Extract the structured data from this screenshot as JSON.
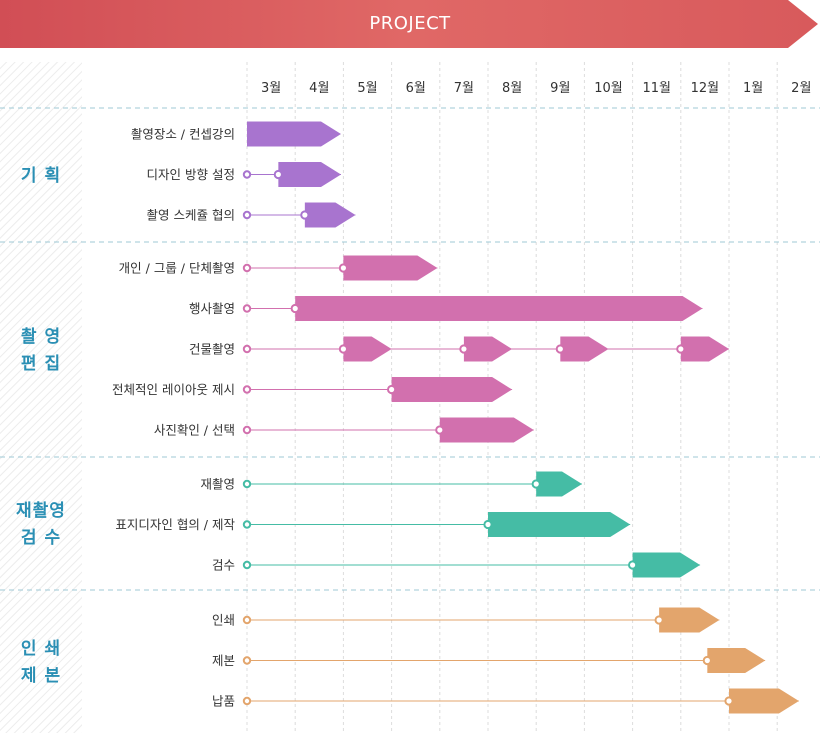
{
  "header": {
    "title": "PROJECT",
    "color": "#d9585b"
  },
  "months": [
    "3월",
    "4월",
    "5월",
    "6월",
    "7월",
    "8월",
    "9월",
    "10월",
    "11월",
    "12월",
    "1월",
    "2월"
  ],
  "phases": [
    {
      "lines": [
        "기 획"
      ],
      "color": "#a874cf",
      "label_color": "#2a8fb4",
      "tasks": [
        {
          "label": "촬영장소 / 컨셉강의",
          "marker": null,
          "bars": [
            [
              0.0,
              1.95
            ]
          ]
        },
        {
          "label": "디자인 방향 설정",
          "marker": 0.65,
          "bars": [
            [
              0.65,
              1.95
            ]
          ]
        },
        {
          "label": "촬영 스케쥴 협의",
          "marker": 1.2,
          "bars": [
            [
              1.2,
              2.25
            ]
          ]
        }
      ]
    },
    {
      "lines": [
        "촬 영",
        "편 집"
      ],
      "color": "#d270ae",
      "label_color": "#2a8fb4",
      "tasks": [
        {
          "label": "개인 / 그룹 / 단체촬영",
          "marker": 2.0,
          "bars": [
            [
              2.0,
              3.95
            ]
          ]
        },
        {
          "label": "행사촬영",
          "marker": 1.0,
          "bars": [
            [
              1.0,
              9.45
            ]
          ]
        },
        {
          "label": "건물촬영",
          "marker": 2.0,
          "bars": [
            [
              2.0,
              3.0
            ],
            [
              4.5,
              5.5
            ],
            [
              6.5,
              7.5
            ],
            [
              9.0,
              10.0
            ]
          ]
        },
        {
          "label": "전체적인 레이아웃 제시",
          "marker": 3.0,
          "bars": [
            [
              3.0,
              5.5
            ]
          ]
        },
        {
          "label": "사진확인 / 선택",
          "marker": 4.0,
          "bars": [
            [
              4.0,
              5.95
            ]
          ]
        }
      ]
    },
    {
      "lines": [
        "재촬영",
        "검 수"
      ],
      "color": "#45bca5",
      "label_color": "#2a8fb4",
      "tasks": [
        {
          "label": "재촬영",
          "marker": 6.0,
          "bars": [
            [
              6.0,
              6.95
            ]
          ]
        },
        {
          "label": "표지디자인 협의 / 제작",
          "marker": 5.0,
          "bars": [
            [
              5.0,
              7.95
            ]
          ]
        },
        {
          "label": "검수",
          "marker": 8.0,
          "bars": [
            [
              8.0,
              9.4
            ]
          ]
        }
      ]
    },
    {
      "lines": [
        "인 쇄",
        "제 본"
      ],
      "color": "#e3a56c",
      "label_color": "#2a8fb4",
      "tasks": [
        {
          "label": "인쇄",
          "marker": 8.55,
          "bars": [
            [
              8.55,
              9.8
            ]
          ]
        },
        {
          "label": "제본",
          "marker": 9.55,
          "bars": [
            [
              9.55,
              10.75
            ]
          ]
        },
        {
          "label": "납품",
          "marker": 10.0,
          "bars": [
            [
              10.0,
              11.45
            ]
          ]
        }
      ]
    }
  ]
}
